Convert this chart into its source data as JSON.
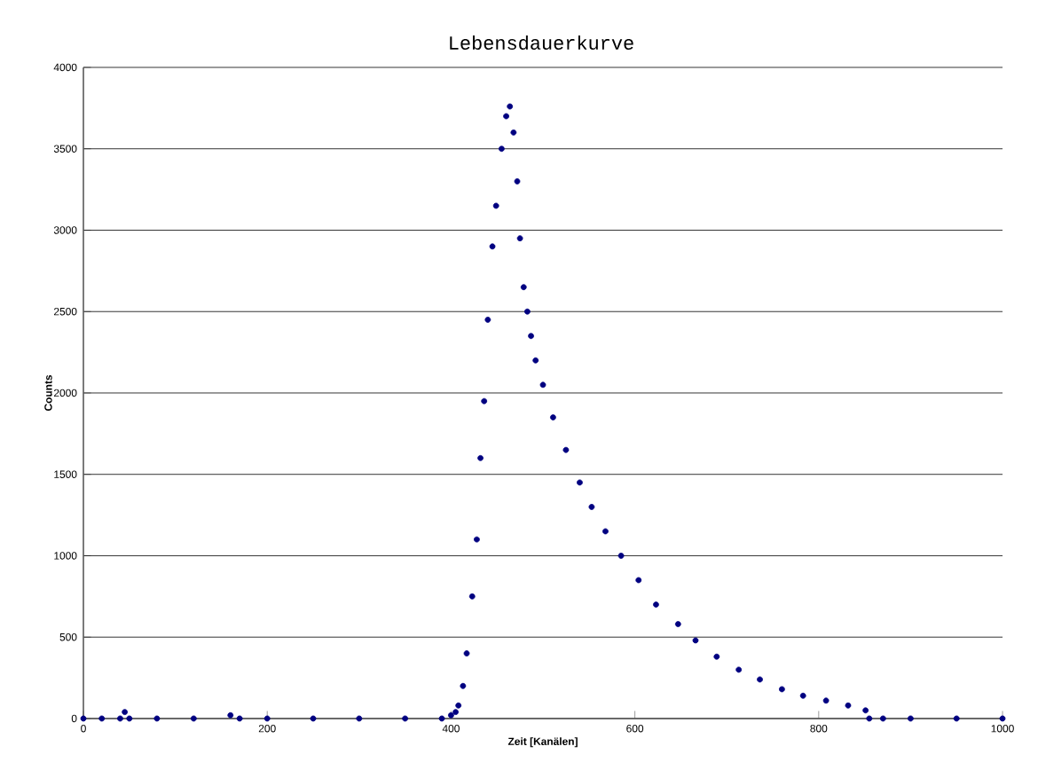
{
  "chart_data": {
    "type": "scatter",
    "title": "Lebensdauerkurve",
    "xlabel": "Zeit [Kanälen]",
    "ylabel": "Counts",
    "xlim": [
      0,
      1000
    ],
    "ylim": [
      0,
      4000
    ],
    "xticks": [
      0,
      200,
      400,
      600,
      800,
      1000
    ],
    "yticks": [
      0,
      500,
      1000,
      1500,
      2000,
      2500,
      3000,
      3500,
      4000
    ],
    "grid": "y",
    "series": [
      {
        "color": "#000080",
        "x": [
          0,
          20,
          40,
          45,
          50,
          80,
          120,
          160,
          170,
          200,
          250,
          300,
          350,
          390,
          400,
          405,
          408,
          413,
          417,
          423,
          428,
          432,
          436,
          440,
          445,
          449,
          455,
          460,
          464,
          468,
          472,
          475,
          479,
          483,
          487,
          492,
          500,
          511,
          525,
          540,
          553,
          568,
          585,
          604,
          623,
          647,
          666,
          689,
          713,
          736,
          760,
          783,
          808,
          832,
          851,
          855,
          870,
          900,
          950,
          1000
        ],
        "values": [
          0,
          0,
          0,
          40,
          0,
          0,
          0,
          20,
          0,
          0,
          0,
          0,
          0,
          0,
          20,
          40,
          80,
          200,
          400,
          750,
          1100,
          1600,
          1950,
          2450,
          2900,
          3150,
          3500,
          3700,
          3760,
          3600,
          3300,
          2950,
          2650,
          2500,
          2350,
          2200,
          2050,
          1850,
          1650,
          1450,
          1300,
          1150,
          1000,
          850,
          700,
          580,
          480,
          380,
          300,
          240,
          180,
          140,
          110,
          80,
          50,
          0,
          0,
          0,
          0,
          0
        ]
      }
    ]
  }
}
